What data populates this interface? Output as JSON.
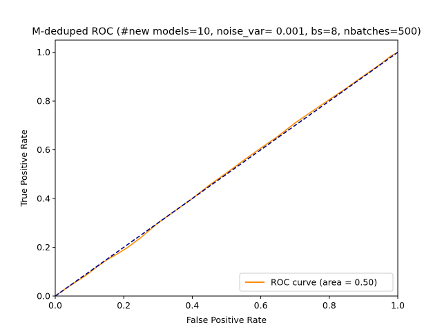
{
  "chart_data": {
    "type": "line",
    "title": "M-deduped ROC  (#new models=10, noise_var= 0.001, bs=8, nbatches=500)",
    "xlabel": "False Positive Rate",
    "ylabel": "True Positive Rate",
    "xlim": [
      0.0,
      1.0
    ],
    "ylim": [
      0.0,
      1.05
    ],
    "xticks": [
      "0.0",
      "0.2",
      "0.4",
      "0.6",
      "0.8",
      "1.0"
    ],
    "yticks": [
      "0.0",
      "0.2",
      "0.4",
      "0.6",
      "0.8",
      "1.0"
    ],
    "grid": false,
    "legend_position": "lower right",
    "series": [
      {
        "name": "ROC curve (area = 0.50)",
        "color": "#ff8c00",
        "style": "solid",
        "x": [
          0.0,
          0.03,
          0.06,
          0.09,
          0.12,
          0.15,
          0.18,
          0.21,
          0.25,
          0.3,
          0.35,
          0.4,
          0.45,
          0.5,
          0.55,
          0.6,
          0.65,
          0.7,
          0.75,
          0.8,
          0.85,
          0.9,
          0.95,
          0.98,
          1.0
        ],
        "y": [
          0.0,
          0.03,
          0.058,
          0.085,
          0.118,
          0.148,
          0.172,
          0.198,
          0.24,
          0.3,
          0.35,
          0.4,
          0.455,
          0.505,
          0.557,
          0.607,
          0.655,
          0.71,
          0.758,
          0.806,
          0.853,
          0.903,
          0.952,
          0.985,
          1.0
        ]
      },
      {
        "name": "",
        "color": "#000080",
        "style": "dashed",
        "x": [
          0.0,
          1.0
        ],
        "y": [
          0.0,
          1.0
        ]
      }
    ]
  }
}
